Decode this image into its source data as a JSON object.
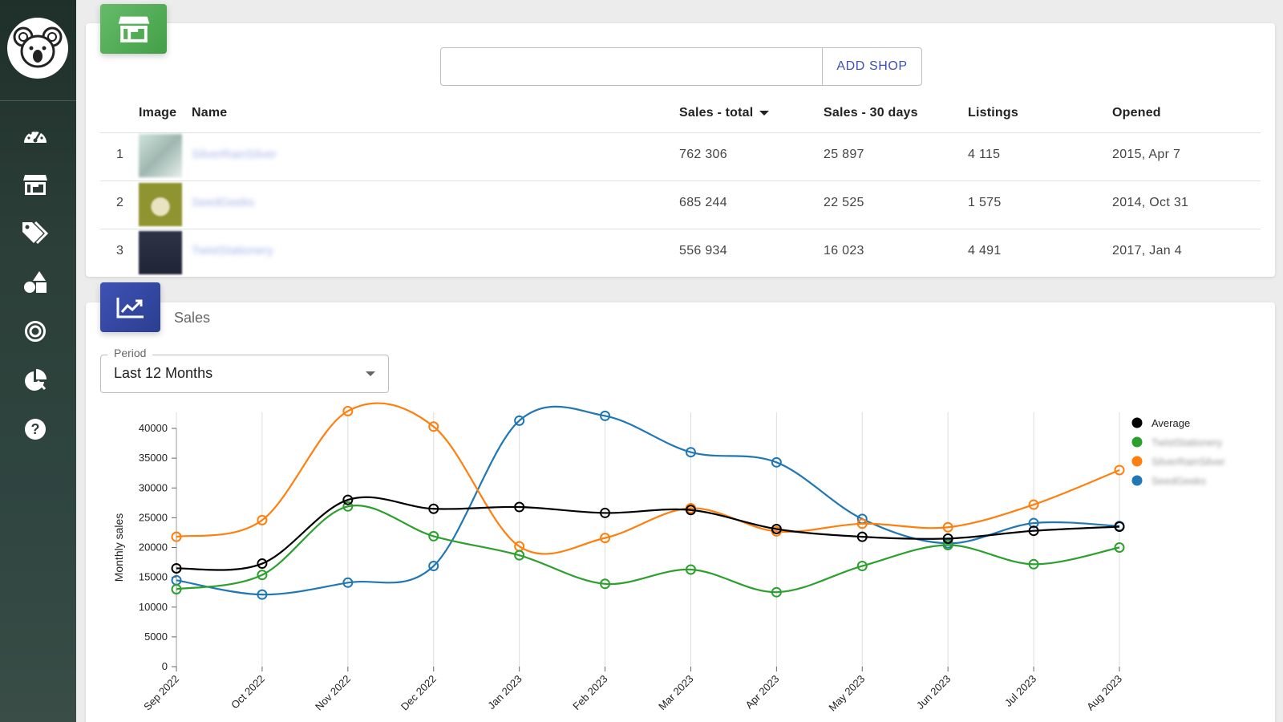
{
  "sidebar": {
    "items": [
      {
        "name": "dashboard",
        "icon": "speedometer-icon"
      },
      {
        "name": "shops",
        "icon": "store-icon"
      },
      {
        "name": "listings",
        "icon": "tags-icon"
      },
      {
        "name": "categories",
        "icon": "shapes-icon"
      },
      {
        "name": "tracking",
        "icon": "target-icon"
      },
      {
        "name": "reports",
        "icon": "pie-chart-icon"
      },
      {
        "name": "help",
        "icon": "help-icon"
      }
    ]
  },
  "shops": {
    "input_value": "",
    "add_button_label": "ADD SHOP",
    "columns": [
      "Image",
      "Name",
      "Sales - total",
      "Sales - 30 days",
      "Listings",
      "Opened"
    ],
    "rows": [
      {
        "rank": "1",
        "name": "SilverRainSilver",
        "sales_total": "762 306",
        "sales_30": "25 897",
        "listings": "4 115",
        "opened": "2015, Apr 7"
      },
      {
        "rank": "2",
        "name": "SeedGeeks",
        "sales_total": "685 244",
        "sales_30": "22 525",
        "listings": "1 575",
        "opened": "2014, Oct 31"
      },
      {
        "rank": "3",
        "name": "TwistStationery",
        "sales_total": "556 934",
        "sales_30": "16 023",
        "listings": "4 491",
        "opened": "2017, Jan 4"
      }
    ]
  },
  "sales": {
    "title": "Sales",
    "period_label": "Period",
    "period_value": "Last 12 Months"
  },
  "chart_data": {
    "type": "line",
    "ylabel": "Monthly sales",
    "ylim": [
      0,
      40000
    ],
    "yticks": [
      0,
      5000,
      10000,
      15000,
      20000,
      25000,
      30000,
      35000,
      40000
    ],
    "categories": [
      "Sep 2022",
      "Oct 2022",
      "Nov 2022",
      "Dec 2022",
      "Jan 2023",
      "Feb 2023",
      "Mar 2023",
      "Apr 2023",
      "May 2023",
      "Jun 2023",
      "Jul 2023",
      "Aug 2023"
    ],
    "legend_position": "right",
    "series": [
      {
        "name": "Average",
        "color": "#000000",
        "values": [
          16500,
          17300,
          28000,
          26500,
          26800,
          25800,
          26300,
          23100,
          21800,
          21500,
          22800,
          23500
        ]
      },
      {
        "name": "TwistStationery",
        "color": "#2ca02c",
        "blurred": true,
        "values": [
          13000,
          15400,
          26900,
          21900,
          18700,
          13900,
          16300,
          12500,
          16900,
          20400,
          17200,
          20000
        ]
      },
      {
        "name": "SilverRainSilver",
        "color": "#ff7f0e",
        "blurred": true,
        "values": [
          21800,
          24600,
          42900,
          40300,
          20200,
          21600,
          26600,
          22700,
          24000,
          23400,
          27200,
          33000
        ]
      },
      {
        "name": "SeedGeeks",
        "color": "#1f77b4",
        "blurred": true,
        "values": [
          14500,
          12100,
          14100,
          16900,
          41300,
          42100,
          36000,
          34300,
          24800,
          20700,
          24100,
          23600
        ]
      }
    ]
  }
}
